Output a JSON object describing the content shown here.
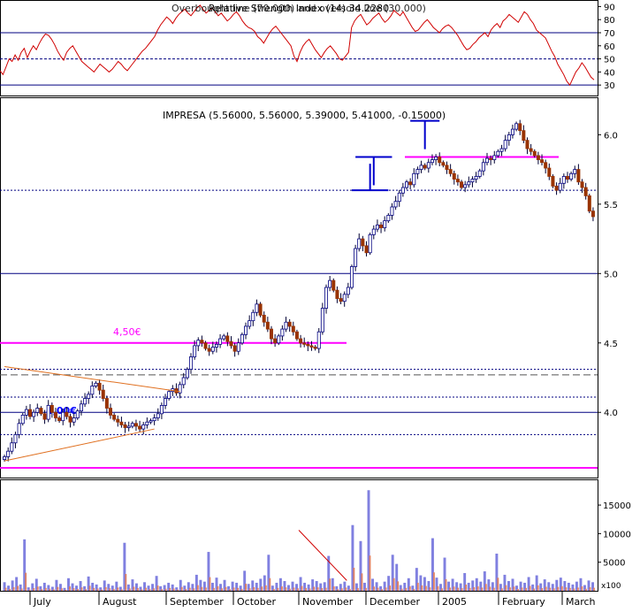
{
  "chart_data": [
    {
      "type": "line",
      "panel": "rsi",
      "title": "Relative Strength Index (14) 34.2280",
      "overlay_text": "Overbought line (70.000) and oversold line (30.000)",
      "ylim": [
        22,
        95
      ],
      "yticks": [
        "90",
        "80",
        "70",
        "60",
        "50",
        "40",
        "30"
      ],
      "overbought": 70,
      "oversold": 30,
      "midline": 50,
      "grid": false,
      "series": [
        {
          "color": "#d00000",
          "values": [
            41,
            38,
            44,
            50,
            48,
            53,
            49,
            55,
            58,
            51,
            56,
            60,
            57,
            62,
            66,
            69,
            68,
            65,
            61,
            56,
            52,
            49,
            55,
            58,
            60,
            56,
            52,
            48,
            46,
            44,
            42,
            40,
            43,
            46,
            44,
            42,
            40,
            42,
            45,
            48,
            46,
            43,
            41,
            44,
            47,
            50,
            53,
            56,
            58,
            61,
            64,
            67,
            72,
            76,
            79,
            82,
            80,
            77,
            81,
            84,
            86,
            88,
            85,
            83,
            86,
            89,
            91,
            88,
            85,
            87,
            89,
            86,
            83,
            85,
            82,
            79,
            81,
            84,
            86,
            83,
            79,
            76,
            74,
            73,
            71,
            67,
            65,
            62,
            66,
            70,
            73,
            75,
            72,
            69,
            66,
            63,
            60,
            52,
            48,
            55,
            60,
            63,
            65,
            61,
            57,
            54,
            51,
            55,
            58,
            60,
            57,
            54,
            50,
            49,
            52,
            55,
            74,
            79,
            82,
            84,
            80,
            76,
            78,
            81,
            83,
            85,
            81,
            78,
            80,
            83,
            87,
            85,
            83,
            86,
            82,
            78,
            74,
            71,
            72,
            75,
            78,
            80,
            77,
            74,
            72,
            70,
            73,
            75,
            76,
            74,
            71,
            68,
            64,
            60,
            57,
            58,
            61,
            63,
            66,
            68,
            70,
            67,
            72,
            75,
            77,
            74,
            79,
            81,
            84,
            82,
            80,
            78,
            82,
            86,
            84,
            80,
            77,
            72,
            70,
            68,
            66,
            61,
            56,
            52,
            46,
            42,
            38,
            33,
            30,
            35,
            40,
            43,
            47,
            44,
            40,
            36,
            34
          ]
        }
      ]
    },
    {
      "type": "candlestick",
      "panel": "price",
      "title": "IMPRESA (5.56000, 5.56000, 5.39000, 5.41000, -0.15000)",
      "ylim": [
        3.53,
        6.27
      ],
      "yticks": [
        "6.0",
        "5.5",
        "5.0",
        "4.5",
        "4.0"
      ],
      "horizontal_lines": [
        {
          "value": 5.0,
          "style": "solid",
          "color": "#000080"
        },
        {
          "value": 4.0,
          "style": "solid",
          "color": "#000080"
        },
        {
          "value": 4.31,
          "style": "dotted",
          "color": "#000080"
        },
        {
          "value": 4.27,
          "style": "dashed",
          "color": "#555555"
        },
        {
          "value": 4.11,
          "style": "dotted",
          "color": "#000080"
        },
        {
          "value": 3.84,
          "style": "dotted",
          "color": "#000080"
        },
        {
          "value": 5.6,
          "style": "dotted",
          "color": "#000080"
        }
      ],
      "support_resistance": [
        {
          "value": 4.5,
          "label": "4,50€",
          "color": "#ff00ff"
        },
        {
          "value": 3.6,
          "label": "",
          "color": "#ff00ff"
        },
        {
          "value": 5.84,
          "label": "",
          "color": "#ff00ff"
        }
      ],
      "annotations": [
        {
          "text": "4,50€",
          "color": "#ff00ff"
        },
        {
          "text": "4,00€",
          "color": "#0000ff"
        }
      ],
      "close_path": [
        3.68,
        3.72,
        3.78,
        3.84,
        3.92,
        3.98,
        4.02,
        3.97,
        4.0,
        4.03,
        3.99,
        3.95,
        4.05,
        4.0,
        3.96,
        3.94,
        4.0,
        3.97,
        3.93,
        3.96,
        4.01,
        4.06,
        4.1,
        4.13,
        4.19,
        4.21,
        4.16,
        4.1,
        4.03,
        3.98,
        3.95,
        3.93,
        3.91,
        3.89,
        3.9,
        3.92,
        3.9,
        3.88,
        3.91,
        3.93,
        3.94,
        3.96,
        3.99,
        4.05,
        4.1,
        4.15,
        4.17,
        4.14,
        4.2,
        4.25,
        4.31,
        4.4,
        4.48,
        4.52,
        4.5,
        4.46,
        4.44,
        4.47,
        4.49,
        4.53,
        4.55,
        4.51,
        4.48,
        4.44,
        4.5,
        4.56,
        4.62,
        4.66,
        4.72,
        4.78,
        4.7,
        4.65,
        4.6,
        4.53,
        4.5,
        4.55,
        4.6,
        4.65,
        4.62,
        4.58,
        4.53,
        4.5,
        4.49,
        4.48,
        4.47,
        4.46,
        4.58,
        4.75,
        4.9,
        4.95,
        4.88,
        4.82,
        4.8,
        4.85,
        4.9,
        5.05,
        5.18,
        5.25,
        5.2,
        5.15,
        5.28,
        5.32,
        5.35,
        5.33,
        5.38,
        5.42,
        5.48,
        5.52,
        5.58,
        5.62,
        5.66,
        5.64,
        5.72,
        5.75,
        5.78,
        5.76,
        5.8,
        5.82,
        5.84,
        5.8,
        5.78,
        5.75,
        5.72,
        5.68,
        5.66,
        5.62,
        5.64,
        5.66,
        5.68,
        5.7,
        5.74,
        5.8,
        5.83,
        5.82,
        5.85,
        5.88,
        5.9,
        5.96,
        6.0,
        6.04,
        6.08,
        6.03,
        5.96,
        5.9,
        5.88,
        5.85,
        5.82,
        5.8,
        5.76,
        5.7,
        5.63,
        5.6,
        5.65,
        5.7,
        5.68,
        5.72,
        5.75,
        5.66,
        5.62,
        5.56,
        5.45,
        5.41
      ],
      "trendlines": [
        {
          "from": [
            0,
            4.33
          ],
          "to": [
            48,
            4.15
          ],
          "color": "#e07020"
        },
        {
          "from": [
            0,
            3.65
          ],
          "to": [
            41,
            3.88
          ],
          "color": "#e07020"
        }
      ],
      "pattern_markers": [
        {
          "from": [
            96,
            5.84
          ],
          "to": [
            106,
            5.84
          ]
        },
        {
          "from": [
            95,
            5.6
          ],
          "to": [
            105,
            5.6
          ]
        },
        {
          "from": [
            111,
            6.1
          ],
          "to": [
            119,
            6.1
          ]
        }
      ]
    },
    {
      "type": "bar",
      "panel": "volume",
      "ylim": [
        0,
        19500
      ],
      "yticks": [
        "15000",
        "10000",
        "5000"
      ],
      "unit_label": "x100",
      "grid": false,
      "series": [
        {
          "color": "#8080e0",
          "values": [
            1500,
            900,
            1800,
            2400,
            1100,
            9000,
            600,
            1300,
            2100,
            800,
            1400,
            1000,
            700,
            1900,
            1200,
            500,
            2200,
            1300,
            900,
            1700,
            800,
            2500,
            1400,
            1100,
            600,
            1800,
            1200,
            900,
            1600,
            700,
            8400,
            1100,
            2000,
            1300,
            700,
            1500,
            900,
            1200,
            2600,
            800,
            1000,
            1400,
            1100,
            600,
            1900,
            900,
            1500,
            1200,
            2800,
            1900,
            1600,
            6800,
            1400,
            2300,
            1200,
            1900,
            800,
            1600,
            1400,
            900,
            3500,
            1200,
            1800,
            1400,
            2100,
            2700,
            6300,
            900,
            1400,
            2200,
            1700,
            1000,
            1600,
            1200,
            2400,
            1400,
            1100,
            2000,
            1700,
            1300,
            1500,
            6100,
            2200,
            800,
            1200,
            1600,
            900,
            11500,
            1300,
            8700,
            1400,
            17600,
            2100,
            1500,
            800,
            1600,
            2600,
            6300,
            4700,
            1000,
            1400,
            2200,
            900,
            4000,
            2700,
            2400,
            1700,
            9200,
            2300,
            1200,
            5800,
            1600,
            2100,
            1500,
            1300,
            3100,
            1400,
            1800,
            2200,
            1600,
            3400,
            2000,
            1500,
            6500,
            1200,
            2800,
            1700,
            2100,
            900,
            1600,
            1400,
            2400,
            1100,
            2700,
            1300,
            2000,
            1500,
            1200,
            1900,
            2300,
            1700,
            1400,
            1100,
            1600,
            2200,
            1000,
            1800,
            1500
          ]
        }
      ],
      "trendlines": [
        {
          "from": [
            74,
            10600
          ],
          "to": [
            86,
            1800
          ],
          "color": "#d00000"
        }
      ]
    }
  ],
  "x_axis": {
    "labels": [
      "July",
      "August",
      "September",
      "October",
      "November",
      "December",
      "2005",
      "February",
      "March"
    ]
  }
}
